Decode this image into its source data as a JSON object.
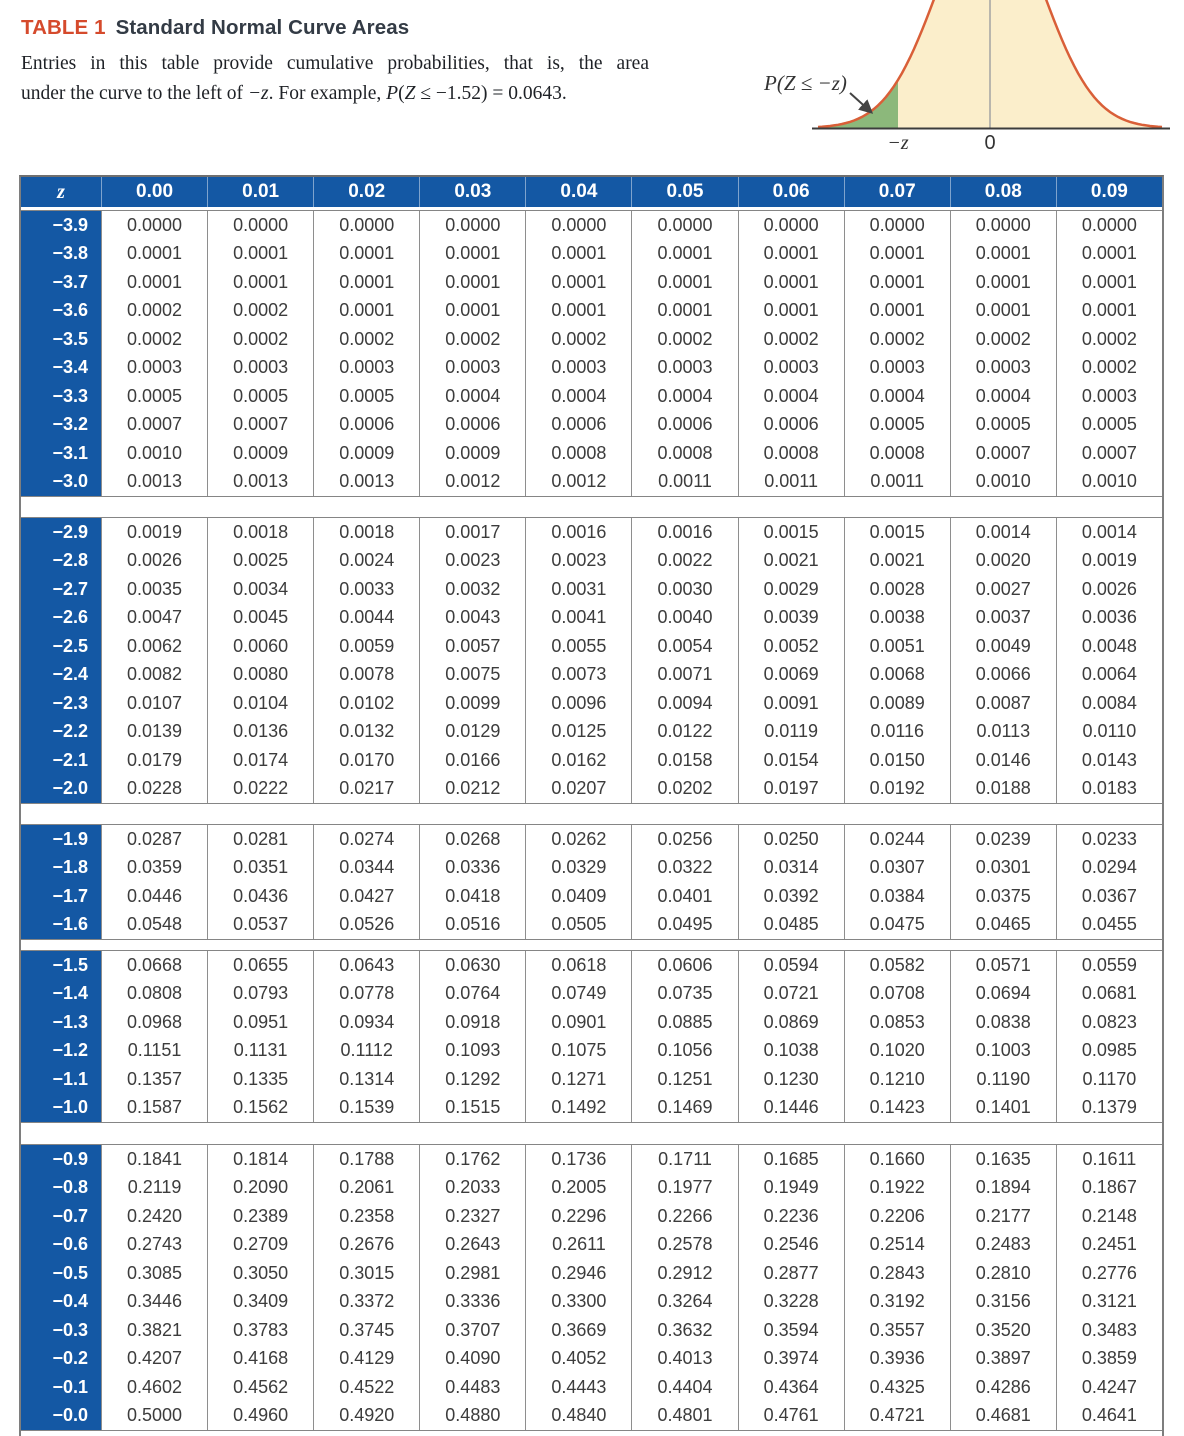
{
  "page": {
    "table_label": "TABLE 1",
    "title": "Standard Normal Curve Areas",
    "description_line1": "Entries in this table provide cumulative probabilities, that is, the area",
    "description_line2_pre": "under the curve to the left of ",
    "description_line2_var": "−z",
    "description_line2_mid": ". For example, ",
    "description_line2_p": "P",
    "description_line2_open": "(",
    "description_line2_z": "Z",
    "description_line2_end": " ≤ −1.52) = 0.0643."
  },
  "diagram": {
    "area_label": "P(Z ≤ −z)",
    "x_label_neg_z": "−z",
    "x_label_zero": "0"
  },
  "colors": {
    "header_blue": "#1458a4",
    "table_red": "#d54a2c",
    "title_dark": "#333b45",
    "curve_stroke": "#d95f38",
    "curve_fill": "#fbeecb",
    "tail_green": "#8cb87b"
  },
  "table": {
    "columns": [
      "z",
      "0.00",
      "0.01",
      "0.02",
      "0.03",
      "0.04",
      "0.05",
      "0.06",
      "0.07",
      "0.08",
      "0.09"
    ],
    "groups": [
      {
        "gap_after": 20,
        "rows": [
          {
            "z": "−3.9",
            "values": [
              "0.0000",
              "0.0000",
              "0.0000",
              "0.0000",
              "0.0000",
              "0.0000",
              "0.0000",
              "0.0000",
              "0.0000",
              "0.0000"
            ]
          },
          {
            "z": "−3.8",
            "values": [
              "0.0001",
              "0.0001",
              "0.0001",
              "0.0001",
              "0.0001",
              "0.0001",
              "0.0001",
              "0.0001",
              "0.0001",
              "0.0001"
            ]
          },
          {
            "z": "−3.7",
            "values": [
              "0.0001",
              "0.0001",
              "0.0001",
              "0.0001",
              "0.0001",
              "0.0001",
              "0.0001",
              "0.0001",
              "0.0001",
              "0.0001"
            ]
          },
          {
            "z": "−3.6",
            "values": [
              "0.0002",
              "0.0002",
              "0.0001",
              "0.0001",
              "0.0001",
              "0.0001",
              "0.0001",
              "0.0001",
              "0.0001",
              "0.0001"
            ]
          },
          {
            "z": "−3.5",
            "values": [
              "0.0002",
              "0.0002",
              "0.0002",
              "0.0002",
              "0.0002",
              "0.0002",
              "0.0002",
              "0.0002",
              "0.0002",
              "0.0002"
            ]
          },
          {
            "z": "−3.4",
            "values": [
              "0.0003",
              "0.0003",
              "0.0003",
              "0.0003",
              "0.0003",
              "0.0003",
              "0.0003",
              "0.0003",
              "0.0003",
              "0.0002"
            ]
          },
          {
            "z": "−3.3",
            "values": [
              "0.0005",
              "0.0005",
              "0.0005",
              "0.0004",
              "0.0004",
              "0.0004",
              "0.0004",
              "0.0004",
              "0.0004",
              "0.0003"
            ]
          },
          {
            "z": "−3.2",
            "values": [
              "0.0007",
              "0.0007",
              "0.0006",
              "0.0006",
              "0.0006",
              "0.0006",
              "0.0006",
              "0.0005",
              "0.0005",
              "0.0005"
            ]
          },
          {
            "z": "−3.1",
            "values": [
              "0.0010",
              "0.0009",
              "0.0009",
              "0.0009",
              "0.0008",
              "0.0008",
              "0.0008",
              "0.0008",
              "0.0007",
              "0.0007"
            ]
          },
          {
            "z": "−3.0",
            "values": [
              "0.0013",
              "0.0013",
              "0.0013",
              "0.0012",
              "0.0012",
              "0.0011",
              "0.0011",
              "0.0011",
              "0.0010",
              "0.0010"
            ]
          }
        ]
      },
      {
        "gap_after": 20,
        "rows": [
          {
            "z": "−2.9",
            "values": [
              "0.0019",
              "0.0018",
              "0.0018",
              "0.0017",
              "0.0016",
              "0.0016",
              "0.0015",
              "0.0015",
              "0.0014",
              "0.0014"
            ]
          },
          {
            "z": "−2.8",
            "values": [
              "0.0026",
              "0.0025",
              "0.0024",
              "0.0023",
              "0.0023",
              "0.0022",
              "0.0021",
              "0.0021",
              "0.0020",
              "0.0019"
            ]
          },
          {
            "z": "−2.7",
            "values": [
              "0.0035",
              "0.0034",
              "0.0033",
              "0.0032",
              "0.0031",
              "0.0030",
              "0.0029",
              "0.0028",
              "0.0027",
              "0.0026"
            ]
          },
          {
            "z": "−2.6",
            "values": [
              "0.0047",
              "0.0045",
              "0.0044",
              "0.0043",
              "0.0041",
              "0.0040",
              "0.0039",
              "0.0038",
              "0.0037",
              "0.0036"
            ]
          },
          {
            "z": "−2.5",
            "values": [
              "0.0062",
              "0.0060",
              "0.0059",
              "0.0057",
              "0.0055",
              "0.0054",
              "0.0052",
              "0.0051",
              "0.0049",
              "0.0048"
            ]
          },
          {
            "z": "−2.4",
            "values": [
              "0.0082",
              "0.0080",
              "0.0078",
              "0.0075",
              "0.0073",
              "0.0071",
              "0.0069",
              "0.0068",
              "0.0066",
              "0.0064"
            ]
          },
          {
            "z": "−2.3",
            "values": [
              "0.0107",
              "0.0104",
              "0.0102",
              "0.0099",
              "0.0096",
              "0.0094",
              "0.0091",
              "0.0089",
              "0.0087",
              "0.0084"
            ]
          },
          {
            "z": "−2.2",
            "values": [
              "0.0139",
              "0.0136",
              "0.0132",
              "0.0129",
              "0.0125",
              "0.0122",
              "0.0119",
              "0.0116",
              "0.0113",
              "0.0110"
            ]
          },
          {
            "z": "−2.1",
            "values": [
              "0.0179",
              "0.0174",
              "0.0170",
              "0.0166",
              "0.0162",
              "0.0158",
              "0.0154",
              "0.0150",
              "0.0146",
              "0.0143"
            ]
          },
          {
            "z": "−2.0",
            "values": [
              "0.0228",
              "0.0222",
              "0.0217",
              "0.0212",
              "0.0207",
              "0.0202",
              "0.0197",
              "0.0192",
              "0.0188",
              "0.0183"
            ]
          }
        ]
      },
      {
        "gap_after": 10,
        "rows": [
          {
            "z": "−1.9",
            "values": [
              "0.0287",
              "0.0281",
              "0.0274",
              "0.0268",
              "0.0262",
              "0.0256",
              "0.0250",
              "0.0244",
              "0.0239",
              "0.0233"
            ]
          },
          {
            "z": "−1.8",
            "values": [
              "0.0359",
              "0.0351",
              "0.0344",
              "0.0336",
              "0.0329",
              "0.0322",
              "0.0314",
              "0.0307",
              "0.0301",
              "0.0294"
            ]
          },
          {
            "z": "−1.7",
            "values": [
              "0.0446",
              "0.0436",
              "0.0427",
              "0.0418",
              "0.0409",
              "0.0401",
              "0.0392",
              "0.0384",
              "0.0375",
              "0.0367"
            ]
          },
          {
            "z": "−1.6",
            "values": [
              "0.0548",
              "0.0537",
              "0.0526",
              "0.0516",
              "0.0505",
              "0.0495",
              "0.0485",
              "0.0475",
              "0.0465",
              "0.0455"
            ]
          }
        ]
      },
      {
        "gap_after": 21,
        "rows": [
          {
            "z": "−1.5",
            "values": [
              "0.0668",
              "0.0655",
              "0.0643",
              "0.0630",
              "0.0618",
              "0.0606",
              "0.0594",
              "0.0582",
              "0.0571",
              "0.0559"
            ]
          },
          {
            "z": "−1.4",
            "values": [
              "0.0808",
              "0.0793",
              "0.0778",
              "0.0764",
              "0.0749",
              "0.0735",
              "0.0721",
              "0.0708",
              "0.0694",
              "0.0681"
            ]
          },
          {
            "z": "−1.3",
            "values": [
              "0.0968",
              "0.0951",
              "0.0934",
              "0.0918",
              "0.0901",
              "0.0885",
              "0.0869",
              "0.0853",
              "0.0838",
              "0.0823"
            ]
          },
          {
            "z": "−1.2",
            "values": [
              "0.1151",
              "0.1131",
              "0.1112",
              "0.1093",
              "0.1075",
              "0.1056",
              "0.1038",
              "0.1020",
              "0.1003",
              "0.0985"
            ]
          },
          {
            "z": "−1.1",
            "values": [
              "0.1357",
              "0.1335",
              "0.1314",
              "0.1292",
              "0.1271",
              "0.1251",
              "0.1230",
              "0.1210",
              "0.1190",
              "0.1170"
            ]
          },
          {
            "z": "−1.0",
            "values": [
              "0.1587",
              "0.1562",
              "0.1539",
              "0.1515",
              "0.1492",
              "0.1469",
              "0.1446",
              "0.1423",
              "0.1401",
              "0.1379"
            ]
          }
        ]
      },
      {
        "gap_after": 14,
        "rows": [
          {
            "z": "−0.9",
            "values": [
              "0.1841",
              "0.1814",
              "0.1788",
              "0.1762",
              "0.1736",
              "0.1711",
              "0.1685",
              "0.1660",
              "0.1635",
              "0.1611"
            ]
          },
          {
            "z": "−0.8",
            "values": [
              "0.2119",
              "0.2090",
              "0.2061",
              "0.2033",
              "0.2005",
              "0.1977",
              "0.1949",
              "0.1922",
              "0.1894",
              "0.1867"
            ]
          },
          {
            "z": "−0.7",
            "values": [
              "0.2420",
              "0.2389",
              "0.2358",
              "0.2327",
              "0.2296",
              "0.2266",
              "0.2236",
              "0.2206",
              "0.2177",
              "0.2148"
            ]
          },
          {
            "z": "−0.6",
            "values": [
              "0.2743",
              "0.2709",
              "0.2676",
              "0.2643",
              "0.2611",
              "0.2578",
              "0.2546",
              "0.2514",
              "0.2483",
              "0.2451"
            ]
          },
          {
            "z": "−0.5",
            "values": [
              "0.3085",
              "0.3050",
              "0.3015",
              "0.2981",
              "0.2946",
              "0.2912",
              "0.2877",
              "0.2843",
              "0.2810",
              "0.2776"
            ]
          },
          {
            "z": "−0.4",
            "values": [
              "0.3446",
              "0.3409",
              "0.3372",
              "0.3336",
              "0.3300",
              "0.3264",
              "0.3228",
              "0.3192",
              "0.3156",
              "0.3121"
            ]
          },
          {
            "z": "−0.3",
            "values": [
              "0.3821",
              "0.3783",
              "0.3745",
              "0.3707",
              "0.3669",
              "0.3632",
              "0.3594",
              "0.3557",
              "0.3520",
              "0.3483"
            ]
          },
          {
            "z": "−0.2",
            "values": [
              "0.4207",
              "0.4168",
              "0.4129",
              "0.4090",
              "0.4052",
              "0.4013",
              "0.3974",
              "0.3936",
              "0.3897",
              "0.3859"
            ]
          },
          {
            "z": "−0.1",
            "values": [
              "0.4602",
              "0.4562",
              "0.4522",
              "0.4483",
              "0.4443",
              "0.4404",
              "0.4364",
              "0.4325",
              "0.4286",
              "0.4247"
            ]
          },
          {
            "z": "−0.0",
            "values": [
              "0.5000",
              "0.4960",
              "0.4920",
              "0.4880",
              "0.4840",
              "0.4801",
              "0.4761",
              "0.4721",
              "0.4681",
              "0.4641"
            ]
          }
        ]
      }
    ]
  }
}
